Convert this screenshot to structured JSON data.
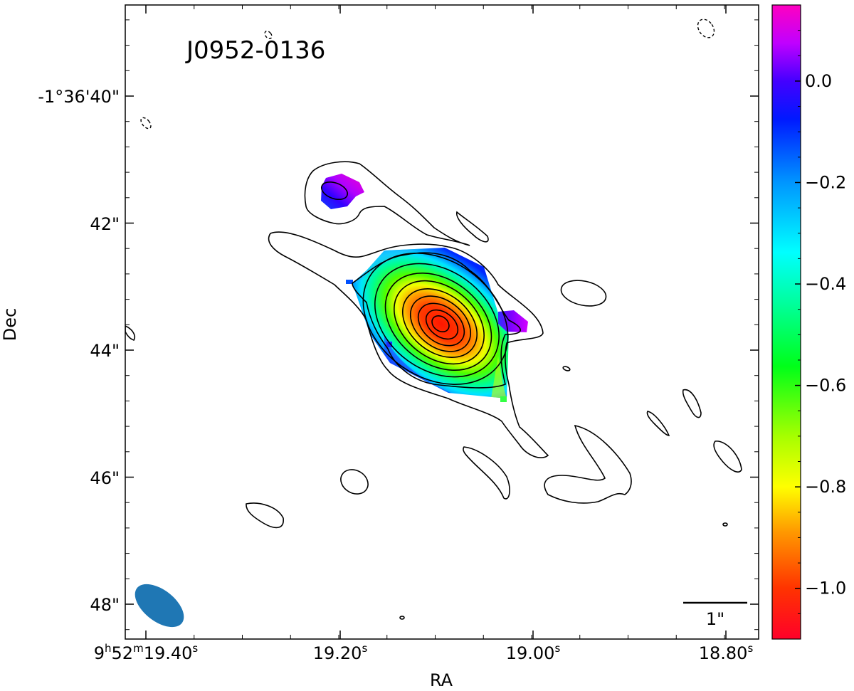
{
  "chart_data": {
    "type": "heatmap",
    "title": "J0952-0136",
    "xlabel": "RA",
    "ylabel": "Dec",
    "x_tick_labels": [
      {
        "main": "9",
        "h": "h",
        "m1": "52",
        "m": "m",
        "s1": "19.40",
        "s": "s"
      },
      {
        "main": "19.20",
        "s": "s"
      },
      {
        "main": "19.00",
        "s": "s"
      },
      {
        "main": "18.80",
        "s": "s"
      }
    ],
    "y_tick_labels": [
      "-1°36'40\"",
      "42\"",
      "44\"",
      "46\"",
      "48\""
    ],
    "y_tick_values_arcsec": [
      40,
      42,
      44,
      46,
      48
    ],
    "colorbar": {
      "ticks": [
        0.0,
        -0.2,
        -0.4,
        -0.6,
        -0.8,
        -1.0
      ],
      "tick_labels": [
        "0.0",
        "−0.2",
        "−0.4",
        "−0.6",
        "−0.8",
        "−1.0"
      ],
      "range": [
        -1.1,
        0.15
      ],
      "colormap": "gist_rainbow"
    },
    "scale_bar_label": "1\"",
    "beam_color": "#1f77b4",
    "contour_color": "#000000",
    "grid": false,
    "sources": [
      {
        "ra_s": 19.098,
        "dec_arcsec": 43.65,
        "min_value": -1.05,
        "max_value": -0.2
      },
      {
        "ra_s": 19.2,
        "dec_arcsec": 41.6,
        "min_value": -0.15,
        "max_value": 0.15
      }
    ]
  }
}
